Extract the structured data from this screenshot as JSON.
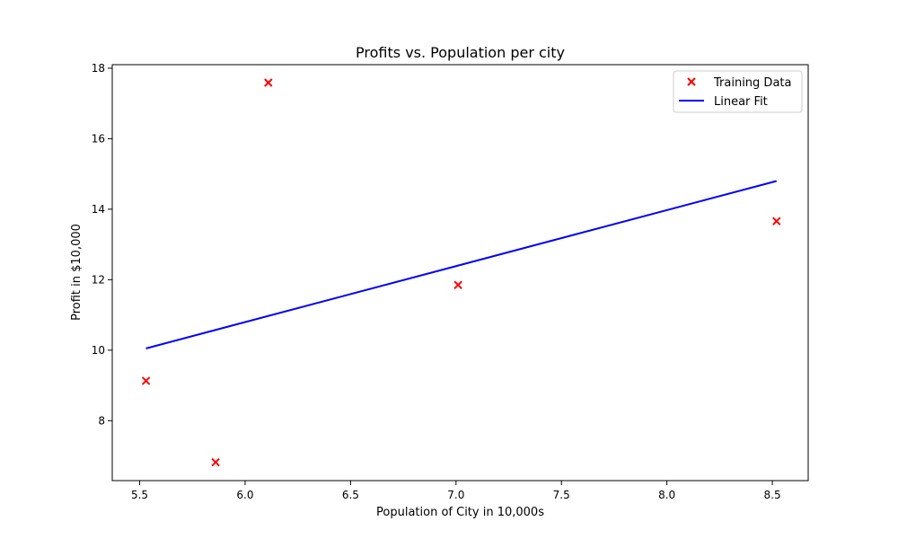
{
  "chart_data": {
    "type": "scatter",
    "title": "Profits vs. Population per city",
    "xlabel": "Population of City in 10,000s",
    "ylabel": "Profit in $10,000",
    "xlim": [
      5.37,
      8.67
    ],
    "ylim": [
      6.3,
      18.1
    ],
    "xticks": [
      5.5,
      6.0,
      6.5,
      7.0,
      7.5,
      8.0,
      8.5
    ],
    "xtick_labels": [
      "5.5",
      "6.0",
      "6.5",
      "7.0",
      "7.5",
      "8.0",
      "8.5"
    ],
    "yticks": [
      8,
      10,
      12,
      14,
      16,
      18
    ],
    "ytick_labels": [
      "8",
      "10",
      "12",
      "14",
      "16",
      "18"
    ],
    "grid": false,
    "legend_position": "top-right",
    "series": [
      {
        "name": "Training Data",
        "type": "scatter",
        "marker": "x",
        "color": "#ff0000",
        "x": [
          5.53,
          5.86,
          6.11,
          7.01,
          8.52
        ],
        "y": [
          9.13,
          6.82,
          17.59,
          11.85,
          13.66
        ]
      },
      {
        "name": "Linear Fit",
        "type": "line",
        "color": "#0000ff",
        "x": [
          5.53,
          8.52
        ],
        "y": [
          10.05,
          14.8
        ]
      }
    ]
  }
}
